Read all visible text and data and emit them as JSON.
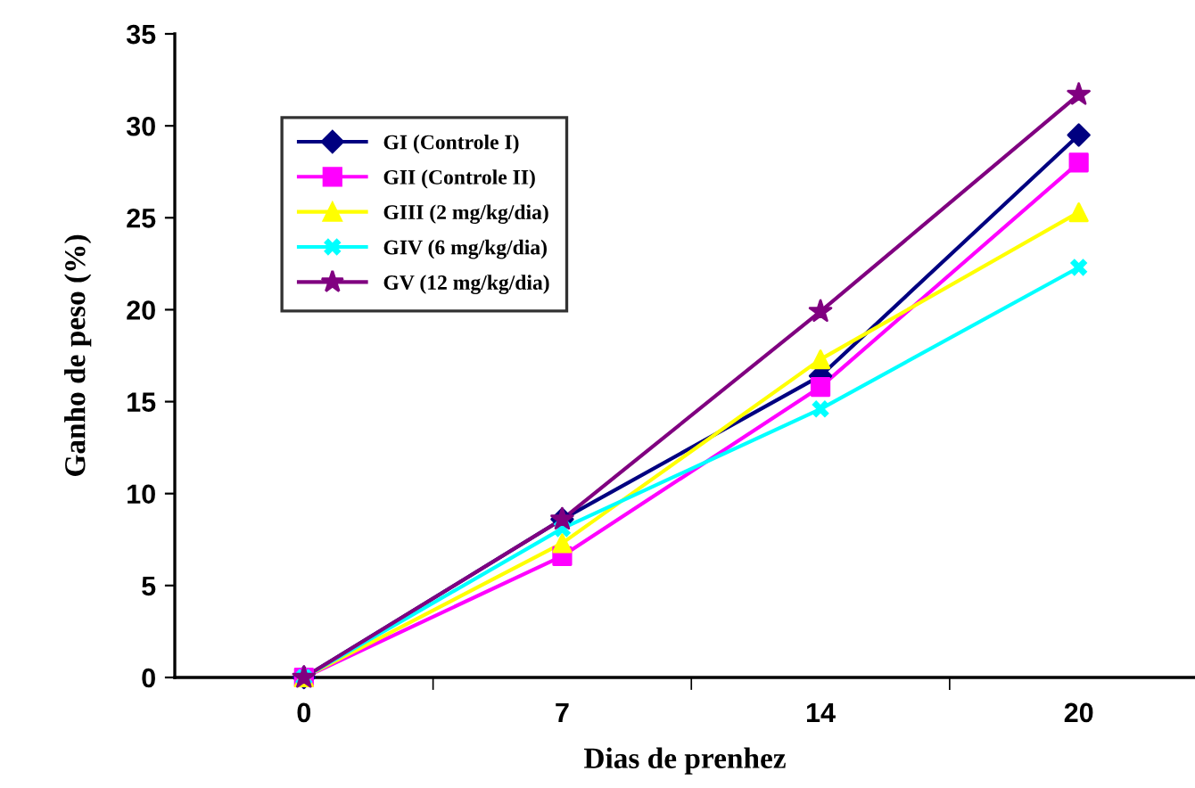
{
  "chart_data": {
    "type": "line",
    "xlabel": "Dias de prenhez",
    "ylabel": "Ganho de peso (%)",
    "categories": [
      "0",
      "7",
      "14",
      "20"
    ],
    "series": [
      {
        "name": "GI (Controle I)",
        "color": "#000080",
        "marker": "diamond",
        "values": [
          0,
          8.6,
          16.4,
          29.5
        ]
      },
      {
        "name": "GII (Controle II)",
        "color": "#ff00ff",
        "marker": "square",
        "values": [
          0,
          6.6,
          15.8,
          28.0
        ]
      },
      {
        "name": "GIII (2 mg/kg/dia)",
        "color": "#ffff00",
        "marker": "triangle",
        "values": [
          0,
          7.3,
          17.3,
          25.3
        ]
      },
      {
        "name": "GIV (6 mg/kg/dia)",
        "color": "#00ffff",
        "marker": "cross",
        "values": [
          0,
          8.1,
          14.6,
          22.3
        ]
      },
      {
        "name": "GV (12 mg/kg/dia)",
        "color": "#800080",
        "marker": "star",
        "values": [
          0,
          8.6,
          19.9,
          31.7
        ]
      }
    ],
    "ylim": [
      0,
      35
    ],
    "yticks": [
      0,
      5,
      10,
      15,
      20,
      25,
      30,
      35
    ],
    "grid": false,
    "legend": "top left",
    "line_style": "solid"
  }
}
